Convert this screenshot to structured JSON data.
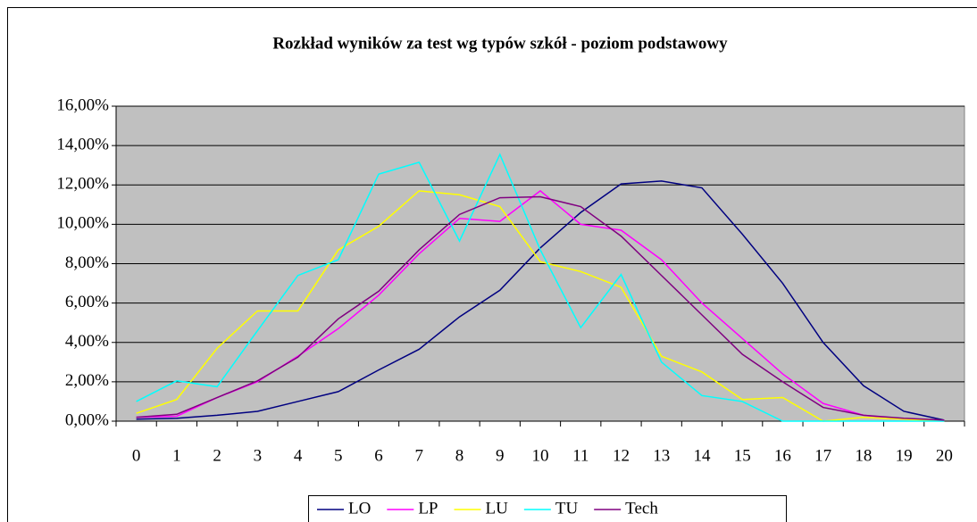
{
  "chart_data": {
    "type": "line",
    "title": "Rozkład wyników za test wg typów szkół - poziom podstawowy",
    "categories": [
      "0",
      "1",
      "2",
      "3",
      "4",
      "5",
      "6",
      "7",
      "8",
      "9",
      "10",
      "11",
      "12",
      "13",
      "14",
      "15",
      "16",
      "17",
      "18",
      "19",
      "20"
    ],
    "series": [
      {
        "name": "LO",
        "color": "#000080",
        "values": [
          0.1,
          0.15,
          0.3,
          0.5,
          1.0,
          1.5,
          2.6,
          3.65,
          5.3,
          6.65,
          8.8,
          10.6,
          12.05,
          12.2,
          11.85,
          9.5,
          7.0,
          4.0,
          1.8,
          0.5,
          0.05
        ]
      },
      {
        "name": "LP",
        "color": "#ff00ff",
        "values": [
          0.2,
          0.25,
          1.2,
          2.0,
          3.3,
          4.7,
          6.4,
          8.5,
          10.3,
          10.15,
          11.7,
          10.0,
          9.7,
          8.2,
          6.0,
          4.2,
          2.4,
          0.9,
          0.3,
          0.1,
          0.05
        ]
      },
      {
        "name": "LU",
        "color": "#ffff00",
        "values": [
          0.4,
          1.1,
          3.7,
          5.6,
          5.6,
          8.7,
          9.9,
          11.7,
          11.5,
          10.9,
          8.1,
          7.6,
          6.8,
          3.3,
          2.5,
          1.1,
          1.2,
          0,
          0.2,
          0.1,
          0
        ]
      },
      {
        "name": "TU",
        "color": "#00ffff",
        "values": [
          1.0,
          2.05,
          1.75,
          4.6,
          7.4,
          8.2,
          12.55,
          13.15,
          9.15,
          13.55,
          8.7,
          4.75,
          7.45,
          3.0,
          1.3,
          1.0,
          0,
          0,
          0,
          0,
          0
        ]
      },
      {
        "name": "Tech",
        "color": "#800080",
        "values": [
          0.2,
          0.35,
          1.2,
          2.05,
          3.25,
          5.2,
          6.6,
          8.7,
          10.5,
          11.35,
          11.4,
          10.9,
          9.4,
          7.4,
          5.4,
          3.4,
          2.0,
          0.7,
          0.3,
          0.15,
          0.05
        ]
      }
    ],
    "ylim": [
      0,
      16
    ],
    "yticks": [
      {
        "value": 0,
        "label": "0,00%"
      },
      {
        "value": 2,
        "label": "2,00%"
      },
      {
        "value": 4,
        "label": "4,00%"
      },
      {
        "value": 6,
        "label": "6,00%"
      },
      {
        "value": 8,
        "label": "8,00%"
      },
      {
        "value": 10,
        "label": "10,00%"
      },
      {
        "value": 12,
        "label": "12,00%"
      },
      {
        "value": 14,
        "label": "14,00%"
      },
      {
        "value": 16,
        "label": "16,00%"
      }
    ],
    "grid": true,
    "plot_background": "#c0c0c0",
    "legend": "bottom"
  }
}
